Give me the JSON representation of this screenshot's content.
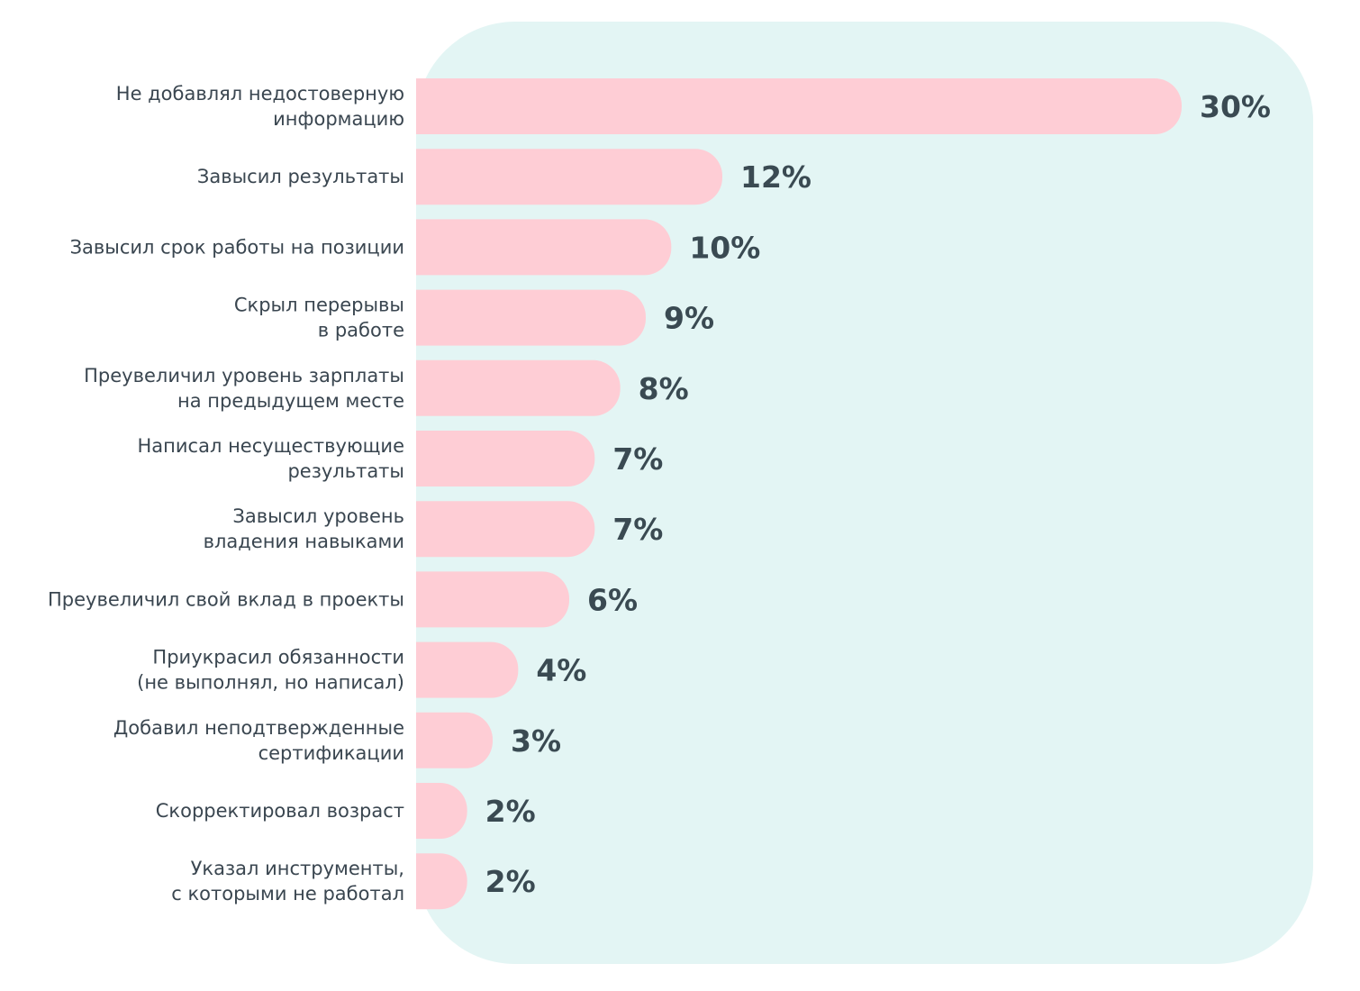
{
  "chart_data": {
    "type": "bar",
    "orientation": "horizontal",
    "title": "",
    "xlabel": "",
    "ylabel": "",
    "unit": "%",
    "xlim": [
      0,
      30
    ],
    "grid": false,
    "legend": "none",
    "categories": [
      "Не добавлял недостоверную информацию",
      "Завысил результаты",
      "Завысил срок работы на позиции",
      "Скрыл перерывы в работе",
      "Преувеличил уровень зарплаты на предыдущем месте",
      "Написал несуществующие результаты",
      "Завысил уровень владения навыками",
      "Преувеличил свой вклад в проекты",
      "Приукрасил обязанности (не выполнял, но написал)",
      "Добавил неподтвержденные сертификации",
      "Скорректировал возраст",
      "Указал инструменты, с которыми не работал"
    ],
    "label_lines": [
      [
        "Не добавлял недостоверную",
        "информацию"
      ],
      [
        "Завысил результаты"
      ],
      [
        "Завысил срок работы на позиции"
      ],
      [
        "Скрыл перерывы",
        "в работе"
      ],
      [
        "Преувеличил уровень зарплаты",
        "на предыдущем месте"
      ],
      [
        "Написал несуществующие",
        "результаты"
      ],
      [
        "Завысил уровень",
        "владения навыками"
      ],
      [
        "Преувеличил свой вклад в проекты"
      ],
      [
        "Приукрасил обязанности",
        "(не выполнял, но написал)"
      ],
      [
        "Добавил неподтвержденные",
        "сертификации"
      ],
      [
        "Скорректировал возраст"
      ],
      [
        "Указал инструменты,",
        "с которыми не работал"
      ]
    ],
    "values": [
      30,
      12,
      10,
      9,
      8,
      7,
      7,
      6,
      4,
      3,
      2,
      2
    ],
    "value_labels": [
      "30%",
      "12%",
      "10%",
      "9%",
      "8%",
      "7%",
      "7%",
      "6%",
      "4%",
      "3%",
      "2%",
      "2%"
    ]
  },
  "colors": {
    "panel_background": "#e3f5f4",
    "bar": "#fecdd5",
    "category_text": "#3a4650",
    "value_text": "#3a4a52"
  }
}
